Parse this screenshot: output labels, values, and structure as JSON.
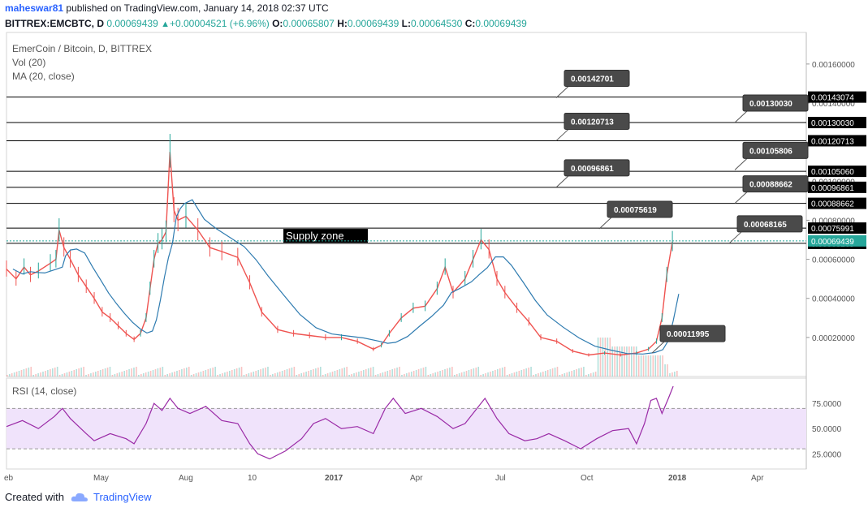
{
  "header": {
    "author": "maheswar81",
    "published_text": "published on TradingView.com, January 14, 2018 02:37 UTC",
    "symbol": "BITTREX:EMCBTC, D",
    "last": "0.00069439",
    "change": "+0.00004521 (+6.96%)",
    "o_label": "O:",
    "o_value": "0.00065807",
    "h_label": "H:",
    "h_value": "0.00069439",
    "l_label": "L:",
    "l_value": "0.00064530",
    "c_label": "C:",
    "c_value": "0.00069439"
  },
  "legend": {
    "title": "EmerCoin / Bitcoin, D, BITTREX",
    "vol": "Vol (20)",
    "ma": "MA (20, close)"
  },
  "rsi": {
    "label": "RSI (14, close)"
  },
  "footer": {
    "created_with": "Created with",
    "brand": "TradingView"
  },
  "colors": {
    "up": "#26a69a",
    "down": "#ef5350",
    "ma": "#2e7bb0",
    "rsi": "#9a2aa6",
    "rsi_band": "#f0e3fb"
  },
  "chart_data": [
    {
      "type": "line",
      "title": "EmerCoin / Bitcoin, D, BITTREX",
      "y_ticks": [
        "0.00160000",
        "0.00140000",
        "0.00120000",
        "0.00100000",
        "0.00080000",
        "0.00060000",
        "0.00040000",
        "0.00020000"
      ],
      "ylim": [
        0,
        0.00172
      ],
      "x_ticks": [
        "eb",
        "May",
        "Aug",
        "10",
        "2017",
        "Apr",
        "Jul",
        "Oct",
        "2018",
        "Apr"
      ],
      "series": [
        {
          "x": [
            0,
            12,
            22,
            30,
            40,
            55,
            62,
            66,
            72,
            80,
            90,
            100,
            110,
            120,
            130,
            140,
            150,
            160,
            168,
            175,
            180,
            185,
            190,
            195,
            200,
            205,
            210,
            215,
            225,
            240,
            255,
            270,
            290,
            305,
            320,
            340,
            360,
            380,
            400,
            420,
            440,
            460,
            470,
            480,
            495,
            510,
            525,
            540,
            550,
            560,
            575,
            585,
            595,
            605,
            615,
            625,
            640,
            655,
            670,
            690,
            710,
            730,
            750,
            770,
            790,
            805,
            815,
            822,
            828,
            835
          ],
          "values": [
            0.00055,
            0.0005,
            0.00056,
            0.00052,
            0.00054,
            0.00058,
            0.0006,
            0.00075,
            0.00066,
            0.0006,
            0.00052,
            0.00046,
            0.0004,
            0.00033,
            0.0003,
            0.00026,
            0.00022,
            0.00019,
            0.00022,
            0.0003,
            0.00045,
            0.0006,
            0.00068,
            0.0007,
            0.00074,
            0.00115,
            0.00085,
            0.0008,
            0.00082,
            0.00075,
            0.00066,
            0.00064,
            0.00061,
            0.00048,
            0.00033,
            0.00024,
            0.00022,
            0.00021,
            0.0002,
            0.0002,
            0.00018,
            0.00014,
            0.00016,
            0.00022,
            0.0003,
            0.00035,
            0.00036,
            0.00045,
            0.00056,
            0.00043,
            0.0005,
            0.0006,
            0.0007,
            0.00065,
            0.0005,
            0.00043,
            0.00035,
            0.00028,
            0.0002,
            0.00018,
            0.00013,
            0.00011,
            0.00012,
            0.00011,
            0.00012,
            0.00014,
            0.00018,
            0.0003,
            0.00052,
            0.00069
          ]
        }
      ],
      "horizontal_lines": [
        0.00143074,
        0.0013003,
        0.00120713,
        0.0010506,
        0.00096861,
        0.00088662,
        0.00075991,
        0.00068165
      ],
      "line_labels": [
        "0.00143074",
        "0.00130030",
        "0.00120713",
        "0.00105060",
        "0.00096861",
        "0.00088662",
        "0.00075991",
        "0.00068165"
      ],
      "current_price": 0.00069439,
      "current_price_label": "0.00069439",
      "callouts": [
        {
          "label": "0.00142701",
          "value": 0.00142701
        },
        {
          "label": "0.00130030",
          "value": 0.0013003
        },
        {
          "label": "0.00120713",
          "value": 0.00120713
        },
        {
          "label": "0.00105806",
          "value": 0.00105806
        },
        {
          "label": "0.00096861",
          "value": 0.00096861
        },
        {
          "label": "0.00088662",
          "value": 0.00088662
        },
        {
          "label": "0.00075619",
          "value": 0.00075619
        },
        {
          "label": "0.00068165",
          "value": 0.00068165
        },
        {
          "label": "0.00011995",
          "value": 0.00011995
        }
      ],
      "annotation": "Supply zone"
    },
    {
      "type": "line",
      "title": "RSI (14, close)",
      "y_ticks": [
        "75.0000",
        "50.0000",
        "25.0000"
      ],
      "ylim": [
        10,
        100
      ],
      "band": [
        30,
        70
      ],
      "series": [
        {
          "x": [
            0,
            20,
            40,
            60,
            70,
            80,
            100,
            110,
            130,
            150,
            160,
            175,
            185,
            195,
            205,
            215,
            230,
            250,
            270,
            290,
            305,
            315,
            330,
            350,
            370,
            385,
            400,
            420,
            440,
            460,
            475,
            485,
            500,
            520,
            540,
            560,
            575,
            590,
            600,
            615,
            630,
            650,
            665,
            680,
            700,
            720,
            740,
            760,
            780,
            790,
            800,
            808,
            815,
            822,
            830,
            836
          ],
          "values": [
            52,
            58,
            50,
            62,
            70,
            60,
            45,
            38,
            45,
            40,
            35,
            55,
            75,
            68,
            80,
            70,
            65,
            72,
            58,
            55,
            35,
            25,
            20,
            28,
            40,
            55,
            60,
            50,
            52,
            45,
            70,
            80,
            65,
            70,
            62,
            50,
            55,
            70,
            80,
            60,
            45,
            38,
            40,
            45,
            38,
            30,
            40,
            48,
            50,
            35,
            55,
            78,
            80,
            65,
            80,
            92
          ]
        }
      ]
    }
  ]
}
